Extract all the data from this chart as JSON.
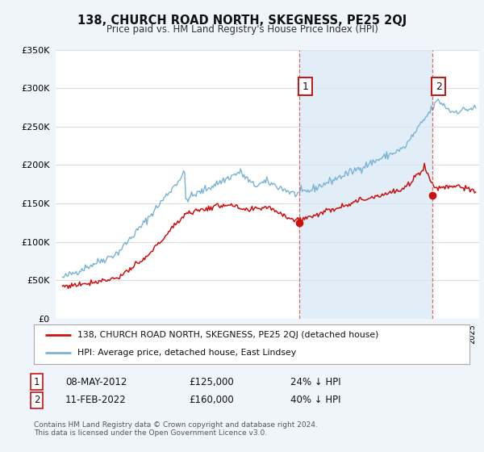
{
  "title": "138, CHURCH ROAD NORTH, SKEGNESS, PE25 2QJ",
  "subtitle": "Price paid vs. HM Land Registry's House Price Index (HPI)",
  "ylim": [
    0,
    350000
  ],
  "xlim_start": 1994.5,
  "xlim_end": 2025.5,
  "hpi_color": "#7ab3d4",
  "hpi_fill_color": "#d6e8f5",
  "price_color": "#cc1111",
  "marker1_date": 2012.35,
  "marker1_price": 125000,
  "marker2_date": 2022.1,
  "marker2_price": 160000,
  "legend_line1": "138, CHURCH ROAD NORTH, SKEGNESS, PE25 2QJ (detached house)",
  "legend_line2": "HPI: Average price, detached house, East Lindsey",
  "table_row1_num": "1",
  "table_row1_date": "08-MAY-2012",
  "table_row1_price": "£125,000",
  "table_row1_pct": "24% ↓ HPI",
  "table_row2_num": "2",
  "table_row2_date": "11-FEB-2022",
  "table_row2_price": "£160,000",
  "table_row2_pct": "40% ↓ HPI",
  "footnote": "Contains HM Land Registry data © Crown copyright and database right 2024.\nThis data is licensed under the Open Government Licence v3.0.",
  "background_color": "#f0f4fb",
  "plot_bg_color": "#ffffff",
  "grid_color": "#dddddd",
  "vline_color": "#e05555"
}
